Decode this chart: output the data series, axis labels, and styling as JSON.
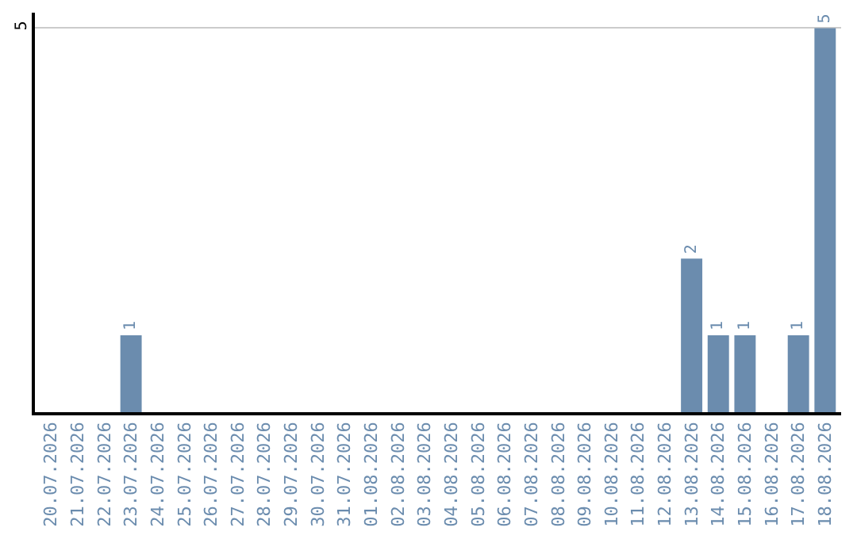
{
  "chart_data": {
    "type": "bar",
    "categories": [
      "20.07.2026",
      "21.07.2026",
      "22.07.2026",
      "23.07.2026",
      "24.07.2026",
      "25.07.2026",
      "26.07.2026",
      "27.07.2026",
      "28.07.2026",
      "29.07.2026",
      "30.07.2026",
      "31.07.2026",
      "01.08.2026",
      "02.08.2026",
      "03.08.2026",
      "04.08.2026",
      "05.08.2026",
      "06.08.2026",
      "07.08.2026",
      "08.08.2026",
      "09.08.2026",
      "10.08.2026",
      "11.08.2026",
      "12.08.2026",
      "13.08.2026",
      "14.08.2026",
      "15.08.2026",
      "16.08.2026",
      "17.08.2026",
      "18.08.2026"
    ],
    "values": [
      0,
      0,
      0,
      1,
      0,
      0,
      0,
      0,
      0,
      0,
      0,
      0,
      0,
      0,
      0,
      0,
      0,
      0,
      0,
      0,
      0,
      0,
      0,
      0,
      2,
      1,
      1,
      0,
      1,
      5
    ],
    "value_labels": [
      null,
      null,
      null,
      "1",
      null,
      null,
      null,
      null,
      null,
      null,
      null,
      null,
      null,
      null,
      null,
      null,
      null,
      null,
      null,
      null,
      null,
      null,
      null,
      null,
      "2",
      "1",
      "1",
      null,
      "1",
      "5"
    ],
    "color": "#6b8cae",
    "ylim": [
      0,
      5.2
    ],
    "yticks": [
      5
    ],
    "grid": "y"
  }
}
